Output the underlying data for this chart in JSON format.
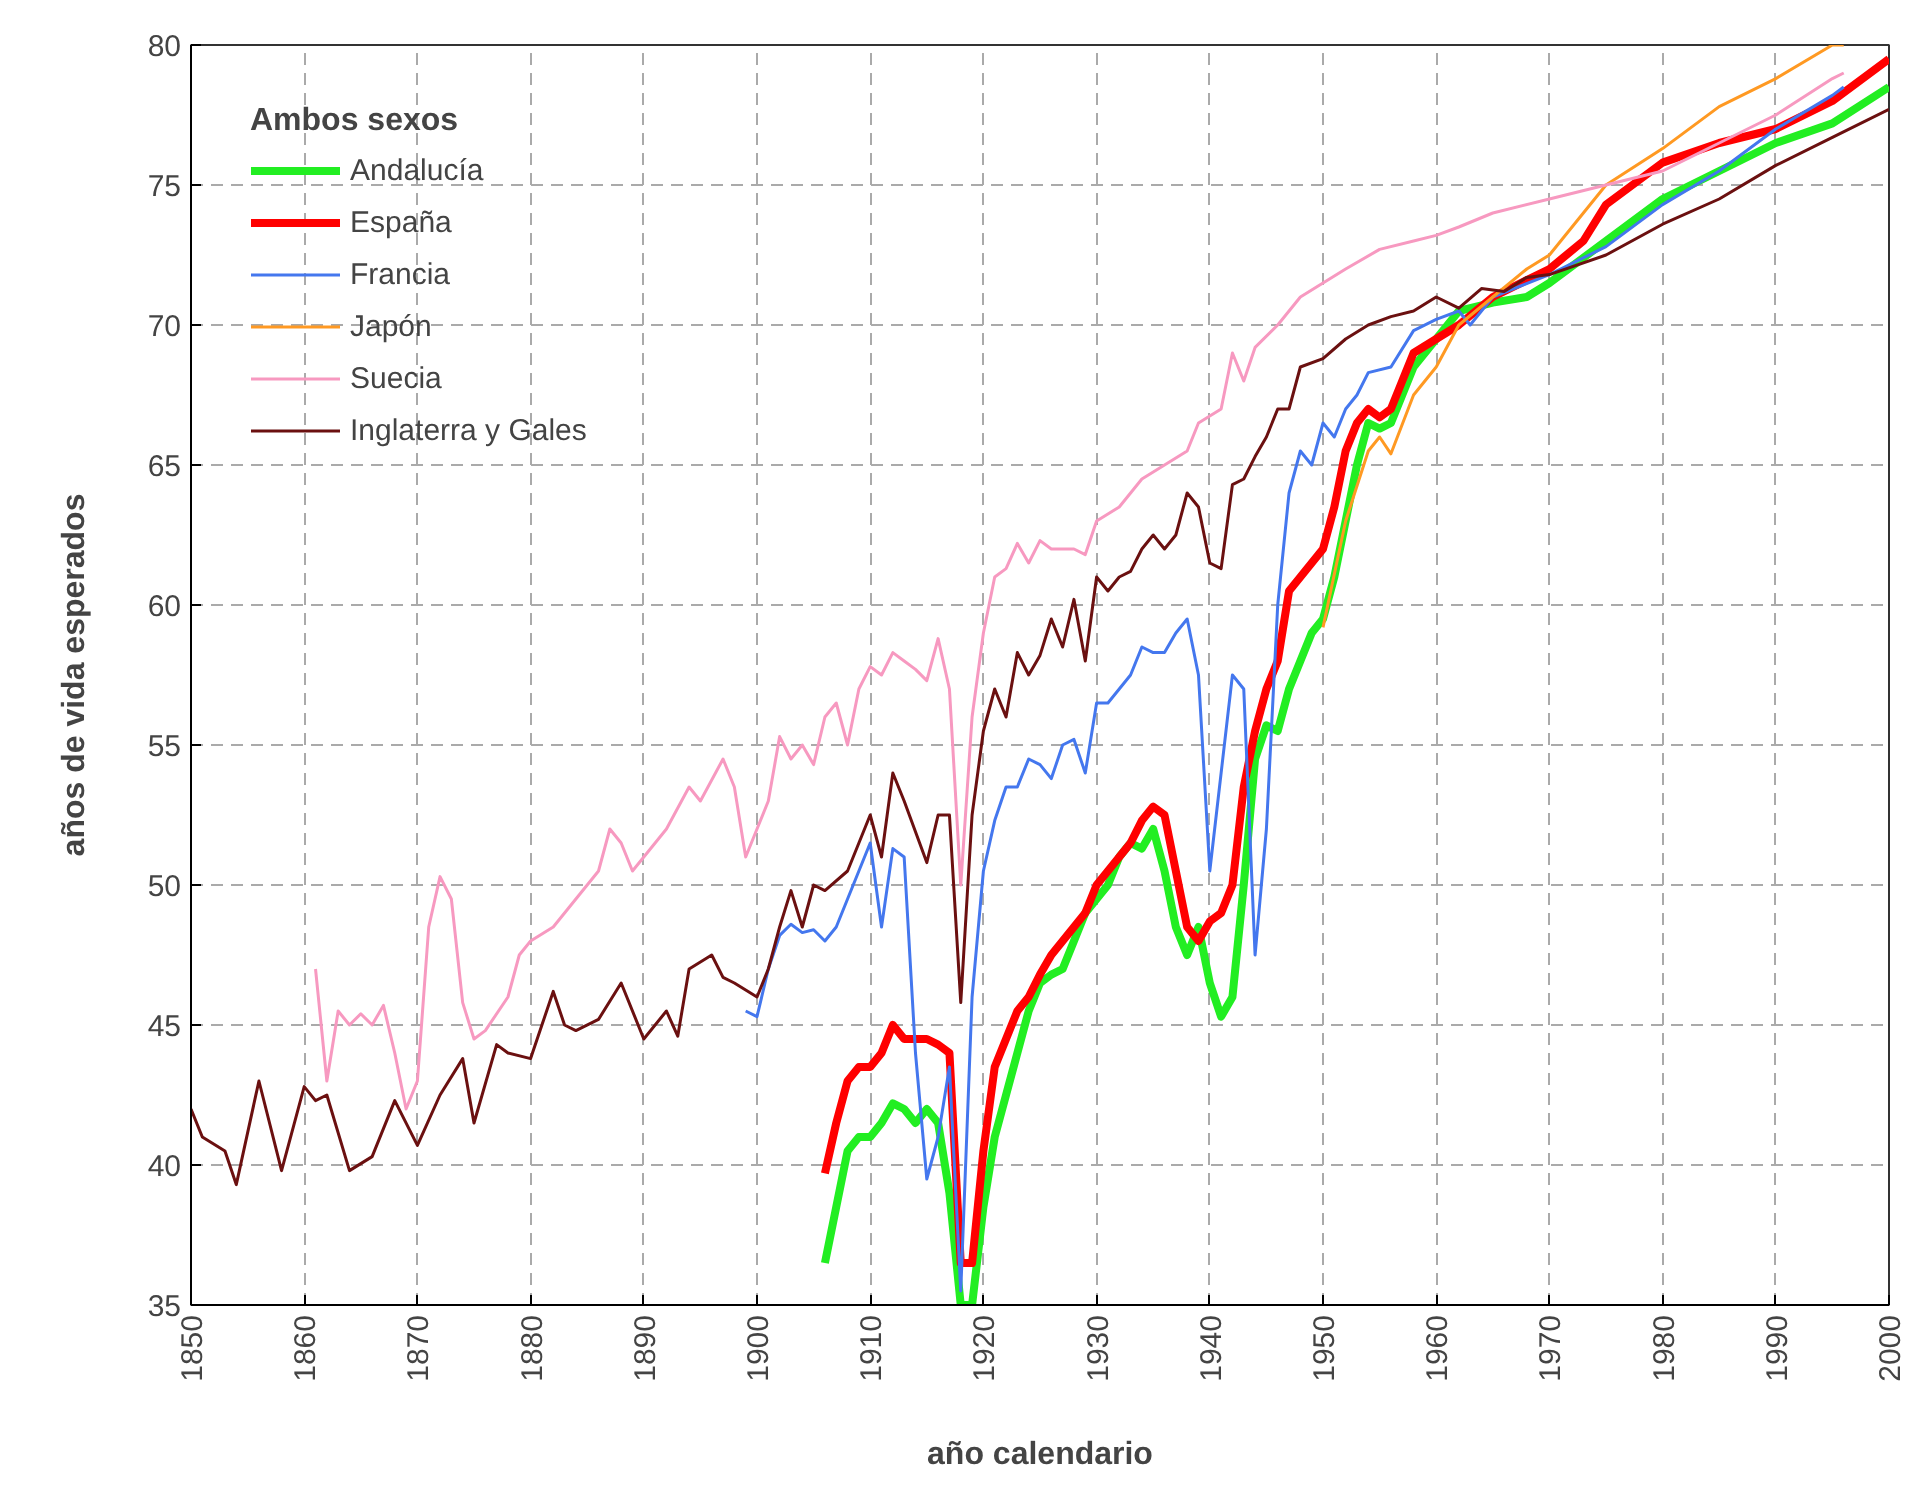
{
  "chart_data": {
    "type": "line",
    "xlabel": "año calendario",
    "ylabel": "años de vida esperados",
    "legend_title": "Ambos sexos",
    "legend": "top left",
    "grid": true,
    "marker": "none",
    "line_style": "solid",
    "xlim": [
      1850,
      2000
    ],
    "ylim": [
      35,
      80
    ],
    "xticks": [
      1850,
      1860,
      1870,
      1880,
      1890,
      1900,
      1910,
      1920,
      1930,
      1940,
      1950,
      1960,
      1970,
      1980,
      1990,
      2000
    ],
    "yticks": [
      35,
      40,
      45,
      50,
      55,
      60,
      65,
      70,
      75,
      80
    ],
    "series": [
      {
        "name": "Andalucía",
        "color": "#22ee22",
        "x": [
          1906,
          1907,
          1908,
          1909,
          1910,
          1911,
          1912,
          1913,
          1914,
          1915,
          1916,
          1917,
          1918,
          1919,
          1920,
          1921,
          1922,
          1923,
          1924,
          1925,
          1926,
          1927,
          1928,
          1929,
          1930,
          1931,
          1932,
          1933,
          1934,
          1935,
          1936,
          1937,
          1938,
          1939,
          1940,
          1941,
          1942,
          1943,
          1944,
          1945,
          1946,
          1947,
          1948,
          1949,
          1950,
          1951,
          1952,
          1953,
          1954,
          1955,
          1956,
          1957,
          1958,
          1960,
          1962,
          1965,
          1968,
          1970,
          1975,
          1980,
          1985,
          1990,
          1995,
          2000
        ],
        "values": [
          36.5,
          38.5,
          40.5,
          41.0,
          41.0,
          41.5,
          42.2,
          42.0,
          41.5,
          42.0,
          41.5,
          39.0,
          35.0,
          35.0,
          38.5,
          41.0,
          42.5,
          44.0,
          45.5,
          46.5,
          46.8,
          47.0,
          48.0,
          49.0,
          49.5,
          50.0,
          51.0,
          51.5,
          51.3,
          52.0,
          50.5,
          48.5,
          47.5,
          48.5,
          46.5,
          45.3,
          46.0,
          50.0,
          54.5,
          55.7,
          55.5,
          57.0,
          58.0,
          59.0,
          59.5,
          61.0,
          63.0,
          65.0,
          66.5,
          66.3,
          66.5,
          67.5,
          68.5,
          69.5,
          70.5,
          70.8,
          71.0,
          71.5,
          73.0,
          74.5,
          75.5,
          76.5,
          77.2,
          78.5
        ]
      },
      {
        "name": "España",
        "color": "#ff0000",
        "x": [
          1906,
          1907,
          1908,
          1909,
          1910,
          1911,
          1912,
          1913,
          1914,
          1915,
          1916,
          1917,
          1918,
          1919,
          1920,
          1921,
          1922,
          1923,
          1924,
          1925,
          1926,
          1927,
          1928,
          1929,
          1930,
          1931,
          1932,
          1933,
          1934,
          1935,
          1936,
          1937,
          1938,
          1939,
          1940,
          1941,
          1942,
          1943,
          1944,
          1945,
          1946,
          1947,
          1948,
          1949,
          1950,
          1951,
          1952,
          1953,
          1954,
          1955,
          1956,
          1957,
          1958,
          1960,
          1962,
          1965,
          1970,
          1973,
          1975,
          1980,
          1985,
          1990,
          1995,
          2000
        ],
        "values": [
          39.7,
          41.5,
          43.0,
          43.5,
          43.5,
          44.0,
          45.0,
          44.5,
          44.5,
          44.5,
          44.3,
          44.0,
          36.5,
          36.5,
          40.5,
          43.5,
          44.5,
          45.5,
          46.0,
          46.8,
          47.5,
          48.0,
          48.5,
          49.0,
          50.0,
          50.5,
          51.0,
          51.5,
          52.3,
          52.8,
          52.5,
          50.5,
          48.5,
          48.0,
          48.7,
          49.0,
          50.0,
          53.5,
          55.5,
          57.0,
          58.0,
          60.5,
          61.0,
          61.5,
          62.0,
          63.5,
          65.5,
          66.5,
          67.0,
          66.7,
          67.0,
          68.0,
          69.0,
          69.5,
          70.0,
          71.0,
          72.0,
          73.0,
          74.3,
          75.8,
          76.5,
          77.0,
          78.0,
          79.5
        ]
      },
      {
        "name": "Francia",
        "color": "#4477ee",
        "x": [
          1899,
          1900,
          1901,
          1902,
          1903,
          1904,
          1905,
          1906,
          1907,
          1908,
          1909,
          1910,
          1911,
          1912,
          1913,
          1914,
          1915,
          1916,
          1917,
          1918,
          1919,
          1920,
          1921,
          1922,
          1923,
          1924,
          1925,
          1926,
          1927,
          1928,
          1929,
          1930,
          1931,
          1932,
          1933,
          1934,
          1935,
          1936,
          1937,
          1938,
          1939,
          1940,
          1941,
          1942,
          1943,
          1944,
          1945,
          1946,
          1947,
          1948,
          1949,
          1950,
          1951,
          1952,
          1953,
          1954,
          1956,
          1958,
          1960,
          1962,
          1963,
          1965,
          1970,
          1975,
          1980,
          1985,
          1990,
          1995,
          1996
        ],
        "values": [
          45.5,
          45.3,
          47.0,
          48.2,
          48.6,
          48.3,
          48.4,
          48.0,
          48.5,
          49.5,
          50.5,
          51.5,
          48.5,
          51.3,
          51.0,
          44.0,
          39.5,
          41.0,
          43.5,
          35.5,
          46.0,
          50.5,
          52.3,
          53.5,
          53.5,
          54.5,
          54.3,
          53.8,
          55.0,
          55.2,
          54.0,
          56.5,
          56.5,
          57.0,
          57.5,
          58.5,
          58.3,
          58.3,
          59.0,
          59.5,
          57.5,
          50.5,
          54.0,
          57.5,
          57.0,
          47.5,
          52.0,
          60.0,
          64.0,
          65.5,
          65.0,
          66.5,
          66.0,
          67.0,
          67.5,
          68.3,
          68.5,
          69.8,
          70.2,
          70.5,
          70.0,
          71.0,
          71.8,
          72.8,
          74.3,
          75.5,
          77.0,
          78.2,
          78.5
        ]
      },
      {
        "name": "Japón",
        "color": "#ff9922",
        "x": [
          1950,
          1952,
          1954,
          1955,
          1956,
          1958,
          1960,
          1962,
          1965,
          1968,
          1970,
          1972,
          1975,
          1980,
          1985,
          1990,
          1995,
          1996
        ],
        "values": [
          59.2,
          63.0,
          65.5,
          66.0,
          65.4,
          67.5,
          68.5,
          70.0,
          71.0,
          72.0,
          72.5,
          73.5,
          75.0,
          76.3,
          77.8,
          78.8,
          80.0,
          80.0
        ]
      },
      {
        "name": "Suecia",
        "color": "#f799c0",
        "x": [
          1861,
          1862,
          1863,
          1864,
          1865,
          1866,
          1867,
          1868,
          1869,
          1870,
          1871,
          1872,
          1873,
          1874,
          1875,
          1876,
          1878,
          1879,
          1880,
          1882,
          1884,
          1886,
          1887,
          1888,
          1889,
          1890,
          1892,
          1894,
          1895,
          1897,
          1898,
          1899,
          1900,
          1901,
          1902,
          1903,
          1904,
          1905,
          1906,
          1907,
          1908,
          1909,
          1910,
          1911,
          1912,
          1913,
          1914,
          1915,
          1916,
          1917,
          1918,
          1919,
          1920,
          1921,
          1922,
          1923,
          1924,
          1925,
          1926,
          1928,
          1929,
          1930,
          1932,
          1934,
          1936,
          1938,
          1939,
          1941,
          1942,
          1943,
          1944,
          1946,
          1948,
          1950,
          1952,
          1955,
          1958,
          1960,
          1962,
          1965,
          1970,
          1975,
          1980,
          1985,
          1990,
          1995,
          1996
        ],
        "values": [
          47.0,
          43.0,
          45.5,
          45.0,
          45.4,
          45.0,
          45.7,
          44.0,
          42.0,
          43.0,
          48.5,
          50.3,
          49.5,
          45.8,
          44.5,
          44.8,
          46.0,
          47.5,
          48.0,
          48.5,
          49.5,
          50.5,
          52.0,
          51.5,
          50.5,
          51.0,
          52.0,
          53.5,
          53.0,
          54.5,
          53.5,
          51.0,
          52.0,
          53.0,
          55.3,
          54.5,
          55.0,
          54.3,
          56.0,
          56.5,
          55.0,
          57.0,
          57.8,
          57.5,
          58.3,
          58.0,
          57.7,
          57.3,
          58.8,
          57.0,
          50.0,
          56.0,
          59.0,
          61.0,
          61.3,
          62.2,
          61.5,
          62.3,
          62.0,
          62.0,
          61.8,
          63.0,
          63.5,
          64.5,
          65.0,
          65.5,
          66.5,
          67.0,
          69.0,
          68.0,
          69.2,
          70.0,
          71.0,
          71.5,
          72.0,
          72.7,
          73.0,
          73.2,
          73.5,
          74.0,
          74.5,
          75.0,
          75.5,
          76.5,
          77.5,
          78.8,
          79.0
        ]
      },
      {
        "name": "Inglaterra y Gales",
        "color": "#6b1010",
        "x": [
          1850,
          1851,
          1853,
          1854,
          1856,
          1858,
          1860,
          1861,
          1862,
          1864,
          1866,
          1868,
          1870,
          1872,
          1874,
          1875,
          1877,
          1878,
          1880,
          1882,
          1883,
          1884,
          1886,
          1888,
          1890,
          1892,
          1893,
          1894,
          1896,
          1897,
          1898,
          1900,
          1901,
          1902,
          1903,
          1904,
          1905,
          1906,
          1908,
          1909,
          1910,
          1911,
          1912,
          1913,
          1915,
          1916,
          1917,
          1918,
          1919,
          1920,
          1921,
          1922,
          1923,
          1924,
          1925,
          1926,
          1927,
          1928,
          1929,
          1930,
          1931,
          1932,
          1933,
          1934,
          1935,
          1936,
          1937,
          1938,
          1939,
          1940,
          1941,
          1942,
          1943,
          1944,
          1945,
          1946,
          1947,
          1948,
          1950,
          1952,
          1954,
          1956,
          1958,
          1960,
          1962,
          1964,
          1966,
          1968,
          1970,
          1975,
          1980,
          1985,
          1990,
          1995,
          2000
        ],
        "values": [
          42.0,
          41.0,
          40.5,
          39.3,
          43.0,
          39.8,
          42.8,
          42.3,
          42.5,
          39.8,
          40.3,
          42.3,
          40.7,
          42.5,
          43.8,
          41.5,
          44.3,
          44.0,
          43.8,
          46.2,
          45.0,
          44.8,
          45.2,
          46.5,
          44.5,
          45.5,
          44.6,
          47.0,
          47.5,
          46.7,
          46.5,
          46.0,
          47.0,
          48.5,
          49.8,
          48.5,
          50.0,
          49.8,
          50.5,
          51.5,
          52.5,
          51.0,
          54.0,
          53.0,
          50.8,
          52.5,
          52.5,
          45.8,
          52.5,
          55.5,
          57.0,
          56.0,
          58.3,
          57.5,
          58.2,
          59.5,
          58.5,
          60.2,
          58.0,
          61.0,
          60.5,
          61.0,
          61.2,
          62.0,
          62.5,
          62.0,
          62.5,
          64.0,
          63.5,
          61.5,
          61.3,
          64.3,
          64.5,
          65.3,
          66.0,
          67.0,
          67.0,
          68.5,
          68.8,
          69.5,
          70.0,
          70.3,
          70.5,
          71.0,
          70.6,
          71.3,
          71.2,
          71.7,
          71.8,
          72.5,
          73.6,
          74.5,
          75.7,
          76.7,
          77.7
        ]
      }
    ]
  }
}
